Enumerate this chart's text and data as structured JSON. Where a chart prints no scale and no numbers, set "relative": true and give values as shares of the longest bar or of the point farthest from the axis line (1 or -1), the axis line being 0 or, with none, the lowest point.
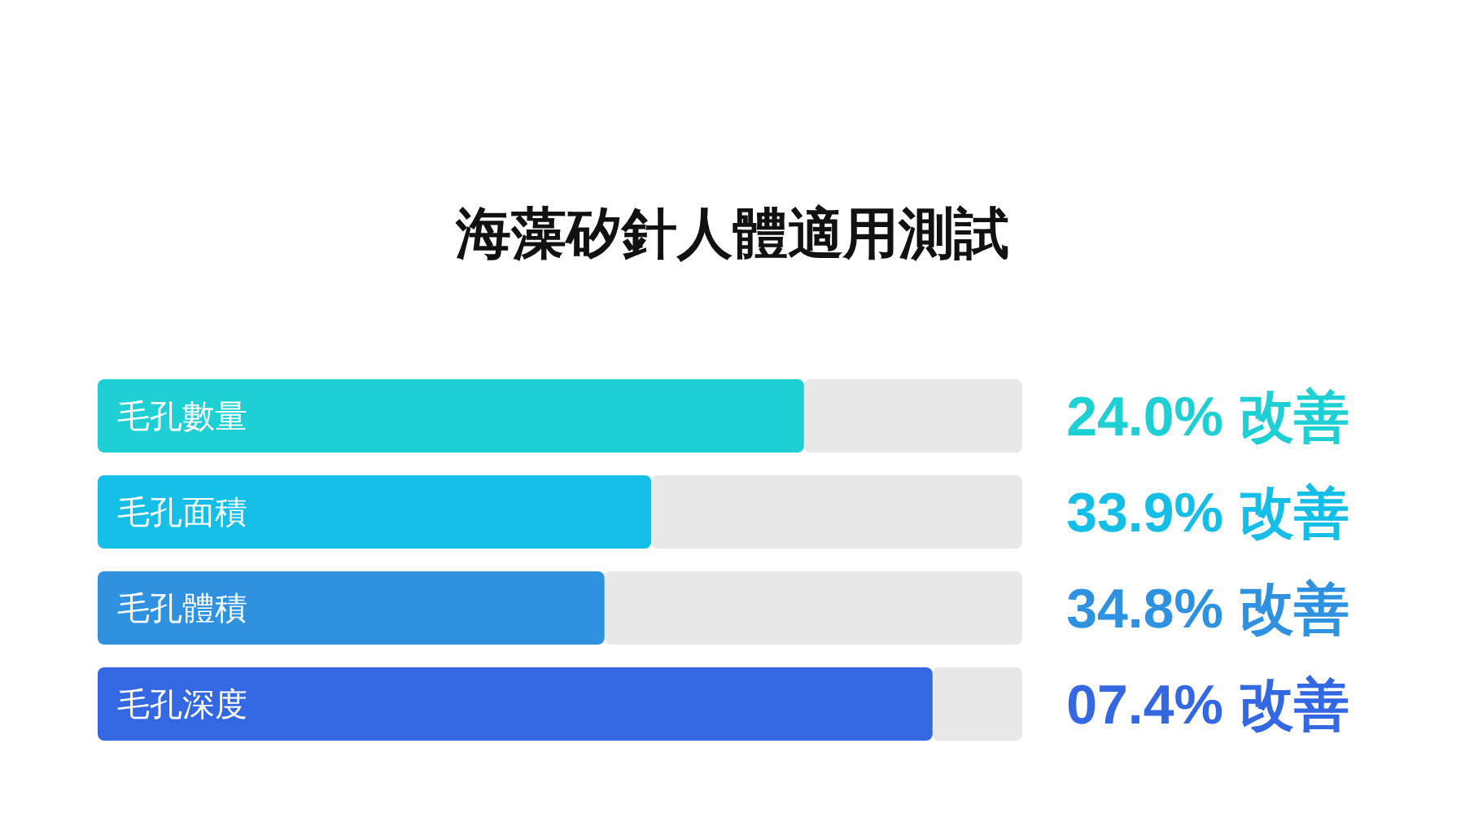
{
  "chart_data": {
    "type": "bar",
    "orientation": "horizontal",
    "relative": true,
    "title": "海藻矽針人體適用測試",
    "categories": [
      "毛孔數量",
      "毛孔面積",
      "毛孔體積",
      "毛孔深度"
    ],
    "values": [
      0.846,
      0.663,
      0.607,
      1
    ],
    "colors": [
      "#1ecfd4",
      "#14bee6",
      "#2e92e0",
      "#3468e2"
    ],
    "annotations": [
      "24.0% 改善",
      "33.9% 改善",
      "34.8% 改善",
      "07.4% 改善"
    ]
  }
}
